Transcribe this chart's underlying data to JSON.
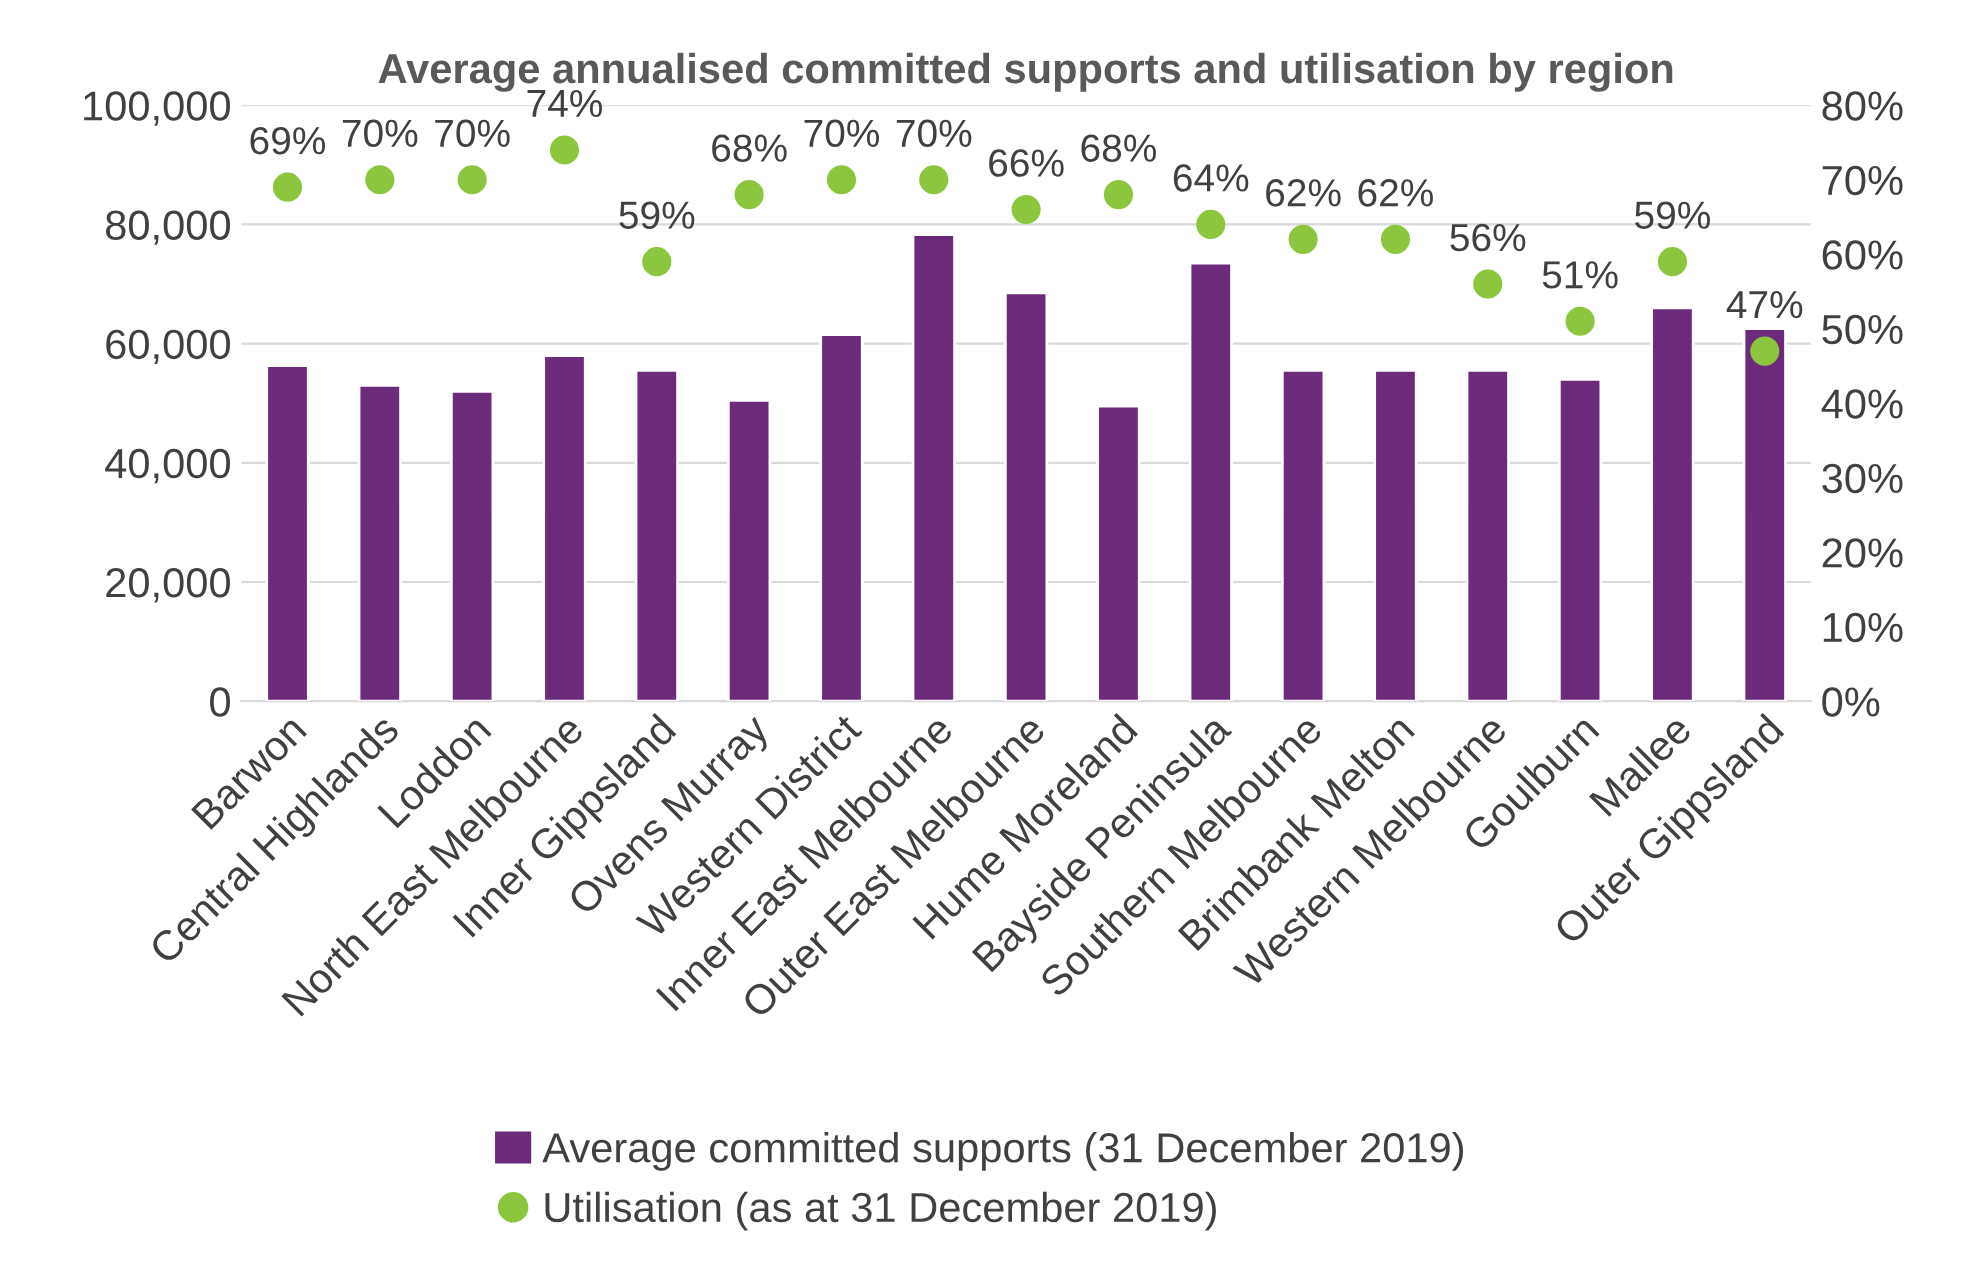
{
  "chart_data": {
    "type": "bar",
    "title": "Average annualised committed supports and utilisation by region",
    "categories": [
      "Barwon",
      "Central Highlands",
      "Loddon",
      "North East Melbourne",
      "Inner Gippsland",
      "Ovens Murray",
      "Western District",
      "Inner East Melbourne",
      "Outer East Melbourne",
      "Hume Moreland",
      "Bayside Peninsula",
      "Southern Melbourne",
      "Brimbank Melton",
      "Western Melbourne",
      "Goulburn",
      "Mallee",
      "Outer Gippsland"
    ],
    "series": [
      {
        "name": "Average committed supports (31 December 2019)",
        "color": "#6b2a7a",
        "values": [
          56300,
          53000,
          52000,
          58000,
          55500,
          50500,
          61500,
          78300,
          68500,
          49500,
          73500,
          55500,
          55500,
          55500,
          54000,
          66000,
          62500
        ]
      },
      {
        "name": "Utilisation (as at 31 December 2019)",
        "type": "scatter",
        "axis": "y2",
        "color": "#8cc63f",
        "marker": "circle",
        "data_labels": true,
        "values": [
          69,
          70,
          70,
          74,
          59,
          68,
          70,
          70,
          66,
          68,
          64,
          62,
          62,
          56,
          51,
          59,
          47
        ],
        "value_labels": [
          "69%",
          "70%",
          "70%",
          "74%",
          "59%",
          "68%",
          "70%",
          "70%",
          "66%",
          "68%",
          "64%",
          "62%",
          "62%",
          "56%",
          "51%",
          "59%",
          "47%"
        ]
      }
    ],
    "ylim": [
      0,
      100000
    ],
    "yticks": [
      {
        "value": 0,
        "label": "0"
      },
      {
        "value": 20000,
        "label": "20,000"
      },
      {
        "value": 40000,
        "label": "40,000"
      },
      {
        "value": 60000,
        "label": "60,000"
      },
      {
        "value": 80000,
        "label": "80,000"
      },
      {
        "value": 100000,
        "label": "100,000"
      }
    ],
    "y2lim": [
      0,
      80
    ],
    "y2ticks": [
      {
        "value": 0,
        "label": "0%"
      },
      {
        "value": 10,
        "label": "10%"
      },
      {
        "value": 20,
        "label": "20%"
      },
      {
        "value": 30,
        "label": "30%"
      },
      {
        "value": 40,
        "label": "40%"
      },
      {
        "value": 50,
        "label": "50%"
      },
      {
        "value": 60,
        "label": "60%"
      },
      {
        "value": 70,
        "label": "70%"
      },
      {
        "value": 80,
        "label": "80%"
      }
    ],
    "grid": "y",
    "legend": "bottom"
  }
}
